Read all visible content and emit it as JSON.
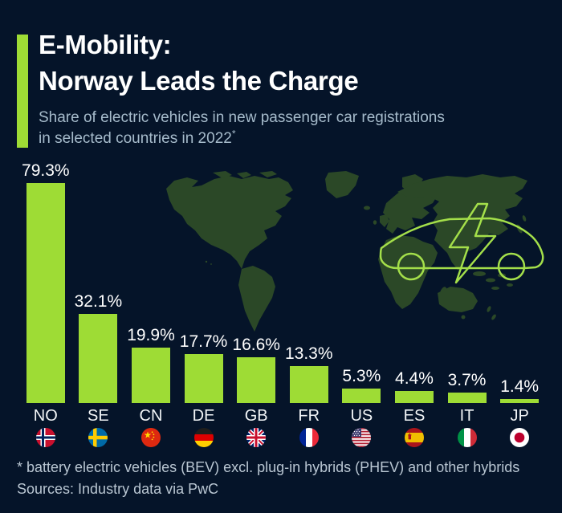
{
  "header": {
    "title_line1": "E-Mobility:",
    "title_line2": "Norway Leads the Charge",
    "subtitle_line1": "Share of electric vehicles in new passenger car registrations",
    "subtitle_line2": "in selected countries in 2022",
    "footnote_marker": "*"
  },
  "chart_data": {
    "type": "bar",
    "title": "E-Mobility: Norway Leads the Charge",
    "subtitle": "Share of electric vehicles in new passenger car registrations in selected countries in 2022*",
    "unit": "percent",
    "ylim": [
      0,
      85
    ],
    "grid": false,
    "legend": "none",
    "value_labels_position": "above bars",
    "categories": [
      "NO",
      "SE",
      "CN",
      "DE",
      "GB",
      "FR",
      "US",
      "ES",
      "IT",
      "JP"
    ],
    "values": [
      79.3,
      32.1,
      19.9,
      17.7,
      16.6,
      13.3,
      5.3,
      4.4,
      3.7,
      1.4
    ],
    "bar_color": "#9edc35",
    "bars": [
      {
        "country_code": "NO",
        "country": "Norway",
        "value": 79.3,
        "label": "79.3%",
        "flag_icon": "norway-flag-icon"
      },
      {
        "country_code": "SE",
        "country": "Sweden",
        "value": 32.1,
        "label": "32.1%",
        "flag_icon": "sweden-flag-icon"
      },
      {
        "country_code": "CN",
        "country": "China",
        "value": 19.9,
        "label": "19.9%",
        "flag_icon": "china-flag-icon"
      },
      {
        "country_code": "DE",
        "country": "Germany",
        "value": 17.7,
        "label": "17.7%",
        "flag_icon": "germany-flag-icon"
      },
      {
        "country_code": "GB",
        "country": "United Kingdom",
        "value": 16.6,
        "label": "16.6%",
        "flag_icon": "uk-flag-icon"
      },
      {
        "country_code": "FR",
        "country": "France",
        "value": 13.3,
        "label": "13.3%",
        "flag_icon": "france-flag-icon"
      },
      {
        "country_code": "US",
        "country": "United States",
        "value": 5.3,
        "label": "5.3%",
        "flag_icon": "us-flag-icon"
      },
      {
        "country_code": "ES",
        "country": "Spain",
        "value": 4.4,
        "label": "4.4%",
        "flag_icon": "spain-flag-icon"
      },
      {
        "country_code": "IT",
        "country": "Italy",
        "value": 3.7,
        "label": "3.7%",
        "flag_icon": "italy-flag-icon"
      },
      {
        "country_code": "JP",
        "country": "Japan",
        "value": 1.4,
        "label": "1.4%",
        "flag_icon": "japan-flag-icon"
      }
    ]
  },
  "graphics": {
    "world_map": "world-map-silhouette",
    "car": "electric-car-outline-with-lightning-bolt",
    "map_color": "#2b4827",
    "car_line_color": "#a4df4a"
  },
  "footer": {
    "note": "* battery electric vehicles (BEV) excl. plug-in hybrids (PHEV) and other hybrids",
    "sources": "Sources: Industry data via PwC"
  },
  "colors": {
    "background": "#051429",
    "accent_green": "#9edc35",
    "text_primary": "#ffffff",
    "subtitle_text": "#a6bbcb",
    "footer_text": "#b9c6d2"
  }
}
